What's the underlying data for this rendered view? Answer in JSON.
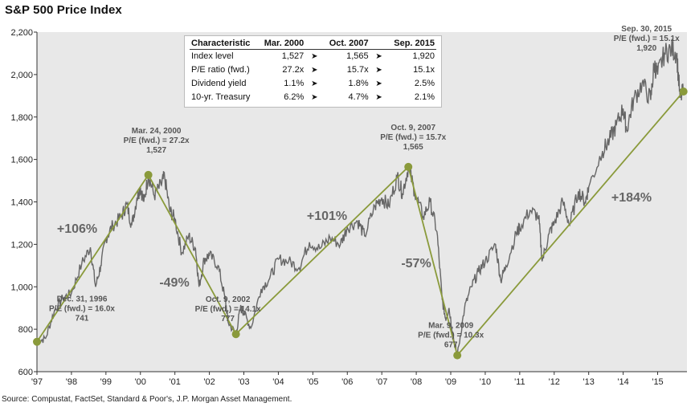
{
  "title": "S&P 500 Price Index",
  "source": "Source: Compustat, FactSet, Standard & Poor's, J.P. Morgan Asset Management.",
  "colors": {
    "background": "#e8e8e8",
    "line": "#666666",
    "trend": "#8a9a3b",
    "marker": "#8a9a3b"
  },
  "chart_data": {
    "type": "line",
    "title": "S&P 500 Price Index",
    "xlabel": "",
    "ylabel": "",
    "x_ticks": [
      "'97",
      "'98",
      "'99",
      "'00",
      "'01",
      "'02",
      "'03",
      "'04",
      "'05",
      "'06",
      "'07",
      "'08",
      "'09",
      "'10",
      "'11",
      "'12",
      "'13",
      "'14",
      "'15"
    ],
    "xlim": [
      1997.0,
      2015.85
    ],
    "ylim": [
      600,
      2200
    ],
    "y_ticks": [
      "600",
      "800",
      "1,000",
      "1,200",
      "1,400",
      "1,600",
      "1,800",
      "2,000",
      "2,200"
    ],
    "y_tick_values": [
      600,
      800,
      1000,
      1200,
      1400,
      1600,
      1800,
      2000,
      2200
    ],
    "grid": false,
    "series": [
      {
        "values": [
          [
            1997.0,
            741
          ],
          [
            1997.25,
            757
          ],
          [
            1997.5,
            885
          ],
          [
            1997.75,
            947
          ],
          [
            1998.0,
            970
          ],
          [
            1998.3,
            1110
          ],
          [
            1998.55,
            1186
          ],
          [
            1998.7,
            1000
          ],
          [
            1998.85,
            1100
          ],
          [
            1999.0,
            1229
          ],
          [
            1999.2,
            1290
          ],
          [
            1999.45,
            1330
          ],
          [
            1999.6,
            1390
          ],
          [
            1999.75,
            1290
          ],
          [
            1999.9,
            1420
          ],
          [
            2000.0,
            1469
          ],
          [
            2000.1,
            1400
          ],
          [
            2000.23,
            1527
          ],
          [
            2000.4,
            1430
          ],
          [
            2000.6,
            1480
          ],
          [
            2000.7,
            1520
          ],
          [
            2000.85,
            1360
          ],
          [
            2001.0,
            1320
          ],
          [
            2001.2,
            1160
          ],
          [
            2001.4,
            1240
          ],
          [
            2001.6,
            1180
          ],
          [
            2001.7,
            1000
          ],
          [
            2001.85,
            1130
          ],
          [
            2002.0,
            1150
          ],
          [
            2002.25,
            1100
          ],
          [
            2002.45,
            950
          ],
          [
            2002.55,
            830
          ],
          [
            2002.77,
            777
          ],
          [
            2002.9,
            900
          ],
          [
            2003.0,
            880
          ],
          [
            2003.2,
            805
          ],
          [
            2003.5,
            990
          ],
          [
            2003.75,
            1040
          ],
          [
            2004.0,
            1130
          ],
          [
            2004.3,
            1120
          ],
          [
            2004.6,
            1090
          ],
          [
            2004.9,
            1210
          ],
          [
            2005.2,
            1180
          ],
          [
            2005.5,
            1230
          ],
          [
            2005.8,
            1200
          ],
          [
            2006.0,
            1280
          ],
          [
            2006.3,
            1310
          ],
          [
            2006.5,
            1240
          ],
          [
            2006.8,
            1380
          ],
          [
            2007.0,
            1420
          ],
          [
            2007.2,
            1380
          ],
          [
            2007.45,
            1520
          ],
          [
            2007.6,
            1440
          ],
          [
            2007.77,
            1565
          ],
          [
            2007.95,
            1450
          ],
          [
            2008.2,
            1330
          ],
          [
            2008.4,
            1400
          ],
          [
            2008.6,
            1260
          ],
          [
            2008.75,
            940
          ],
          [
            2008.85,
            850
          ],
          [
            2008.95,
            900
          ],
          [
            2009.1,
            740
          ],
          [
            2009.19,
            677
          ],
          [
            2009.4,
            900
          ],
          [
            2009.6,
            1000
          ],
          [
            2009.8,
            1070
          ],
          [
            2010.0,
            1120
          ],
          [
            2010.3,
            1200
          ],
          [
            2010.45,
            1030
          ],
          [
            2010.6,
            1100
          ],
          [
            2010.9,
            1250
          ],
          [
            2011.0,
            1280
          ],
          [
            2011.3,
            1360
          ],
          [
            2011.55,
            1330
          ],
          [
            2011.65,
            1120
          ],
          [
            2011.85,
            1250
          ],
          [
            2012.0,
            1300
          ],
          [
            2012.25,
            1400
          ],
          [
            2012.45,
            1290
          ],
          [
            2012.7,
            1450
          ],
          [
            2012.9,
            1400
          ],
          [
            2013.0,
            1470
          ],
          [
            2013.4,
            1640
          ],
          [
            2013.6,
            1690
          ],
          [
            2013.8,
            1760
          ],
          [
            2014.0,
            1840
          ],
          [
            2014.1,
            1740
          ],
          [
            2014.3,
            1880
          ],
          [
            2014.55,
            1960
          ],
          [
            2014.8,
            1880
          ],
          [
            2014.9,
            2050
          ],
          [
            2015.0,
            2000
          ],
          [
            2015.2,
            2100
          ],
          [
            2015.4,
            2120
          ],
          [
            2015.55,
            2100
          ],
          [
            2015.65,
            1890
          ],
          [
            2015.75,
            1920
          ]
        ]
      }
    ],
    "trend_points": [
      [
        1997.0,
        741
      ],
      [
        2000.23,
        1527
      ],
      [
        2002.77,
        777
      ],
      [
        2007.77,
        1565
      ],
      [
        2009.19,
        677
      ],
      [
        2015.75,
        1920
      ]
    ],
    "peak_labels": [
      {
        "x": 1997.0,
        "y": 741,
        "lines": [
          "Dec. 31, 1996",
          "P/E (fwd.) = 16.0x",
          "741"
        ]
      },
      {
        "x": 2000.23,
        "y": 1527,
        "lines": [
          "Mar. 24, 2000",
          "P/E (fwd.) = 27.2x",
          "1,527"
        ]
      },
      {
        "x": 2002.77,
        "y": 777,
        "lines": [
          "Oct. 9, 2002",
          "P/E (fwd.) = 14.1x",
          "777"
        ]
      },
      {
        "x": 2007.77,
        "y": 1565,
        "lines": [
          "Oct. 9, 2007",
          "P/E (fwd.) = 15.7x",
          "1,565"
        ]
      },
      {
        "x": 2009.19,
        "y": 677,
        "lines": [
          "Mar. 9, 2009",
          "P/E (fwd.) = 10.3x",
          "677"
        ]
      },
      {
        "x": 2015.75,
        "y": 1920,
        "lines": [
          "Sep. 30, 2015",
          "P/E (fwd.) = 15.1x",
          "1,920"
        ]
      }
    ],
    "change_labels": [
      "+106%",
      "-49%",
      "+101%",
      "-57%",
      "+184%"
    ],
    "table": {
      "headers": [
        "Characteristic",
        "Mar. 2000",
        "Oct. 2007",
        "Sep. 2015"
      ],
      "rows": [
        [
          "Index level",
          "1,527",
          "1,565",
          "1,920"
        ],
        [
          "P/E ratio (fwd.)",
          "27.2x",
          "15.7x",
          "15.1x"
        ],
        [
          "Dividend yield",
          "1.1%",
          "1.8%",
          "2.5%"
        ],
        [
          "10-yr. Treasury",
          "6.2%",
          "4.7%",
          "2.1%"
        ]
      ]
    }
  }
}
